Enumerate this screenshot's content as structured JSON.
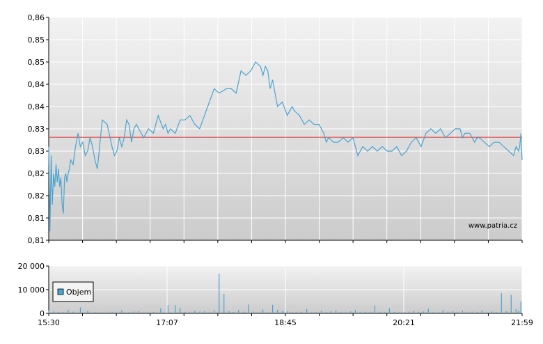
{
  "watermark": "www.patria.cz",
  "colors": {
    "price_line": "#4aa3d1",
    "reference_line": "#e03030",
    "volume_bar": "#4aa3d1",
    "grid": "#ffffff",
    "plot_bg_top": "#f2f2f2",
    "plot_bg_bottom": "#cccccc",
    "axis": "#000000"
  },
  "chart_data": [
    {
      "type": "line",
      "title": "",
      "xlabel": "",
      "ylabel": "",
      "x_tick_labels": [
        "15:30",
        "17:07",
        "18:45",
        "20:21",
        "21:59"
      ],
      "y_tick_labels": [
        "0,81",
        "0,81",
        "0,82",
        "0,82",
        "0,83",
        "0,83",
        "0,84",
        "0,84",
        "0,85",
        "0,85",
        "0,86"
      ],
      "ylim": [
        0.81,
        0.86
      ],
      "xlim_minutes": [
        0,
        389
      ],
      "grid": true,
      "reference_line": {
        "value": 0.8331
      },
      "series": [
        {
          "x": [
            0,
            1,
            2,
            3,
            4,
            5,
            6,
            7,
            8,
            9,
            10,
            11,
            12,
            13,
            14,
            15,
            16,
            17,
            18,
            20,
            22,
            24,
            26,
            28,
            30,
            32,
            34,
            36,
            38,
            40,
            44,
            48,
            52,
            54,
            56,
            58,
            60,
            62,
            64,
            66,
            68,
            70,
            72,
            74,
            78,
            82,
            86,
            90,
            94,
            96,
            98,
            100,
            104,
            108,
            112,
            116,
            120,
            124,
            128,
            132,
            136,
            140,
            146,
            150,
            154,
            158,
            162,
            166,
            170,
            174,
            176,
            178,
            180,
            182,
            184,
            186,
            188,
            192,
            196,
            198,
            200,
            202,
            206,
            210,
            214,
            218,
            222,
            226,
            228,
            230,
            234,
            238,
            242,
            246,
            250,
            254,
            258,
            262,
            266,
            270,
            274,
            278,
            282,
            286,
            290,
            294,
            298,
            302,
            306,
            310,
            314,
            318,
            322,
            326,
            330,
            334,
            338,
            340,
            342,
            346,
            350,
            352,
            354,
            358,
            362,
            366,
            370,
            374,
            378,
            382,
            384,
            386,
            387,
            388,
            389
          ],
          "y": [
            0.831,
            0.812,
            0.829,
            0.818,
            0.825,
            0.822,
            0.827,
            0.823,
            0.826,
            0.822,
            0.824,
            0.818,
            0.816,
            0.824,
            0.825,
            0.823,
            0.825,
            0.826,
            0.828,
            0.827,
            0.831,
            0.834,
            0.831,
            0.832,
            0.829,
            0.83,
            0.833,
            0.831,
            0.828,
            0.826,
            0.837,
            0.836,
            0.831,
            0.829,
            0.83,
            0.833,
            0.831,
            0.833,
            0.837,
            0.836,
            0.832,
            0.835,
            0.836,
            0.835,
            0.833,
            0.835,
            0.834,
            0.838,
            0.835,
            0.836,
            0.834,
            0.835,
            0.834,
            0.837,
            0.837,
            0.838,
            0.836,
            0.835,
            0.838,
            0.841,
            0.844,
            0.843,
            0.844,
            0.844,
            0.843,
            0.848,
            0.847,
            0.848,
            0.85,
            0.849,
            0.847,
            0.849,
            0.848,
            0.844,
            0.846,
            0.843,
            0.84,
            0.841,
            0.838,
            0.839,
            0.84,
            0.839,
            0.838,
            0.836,
            0.837,
            0.836,
            0.836,
            0.834,
            0.832,
            0.833,
            0.832,
            0.832,
            0.833,
            0.832,
            0.833,
            0.829,
            0.831,
            0.83,
            0.831,
            0.83,
            0.831,
            0.83,
            0.83,
            0.831,
            0.829,
            0.83,
            0.832,
            0.833,
            0.831,
            0.834,
            0.835,
            0.834,
            0.835,
            0.833,
            0.834,
            0.835,
            0.835,
            0.833,
            0.834,
            0.834,
            0.832,
            0.833,
            0.833,
            0.832,
            0.831,
            0.832,
            0.832,
            0.831,
            0.83,
            0.829,
            0.831,
            0.83,
            0.831,
            0.834,
            0.828
          ],
          "raw_dense_note_exclusion": true
        }
      ]
    },
    {
      "type": "bar",
      "title": "",
      "xlabel": "",
      "ylabel": "",
      "y_tick_labels": [
        "0",
        "10 000",
        "20 000"
      ],
      "ylim": [
        0,
        20000
      ],
      "legend": {
        "label": "Objem",
        "placement": "bottom-left"
      },
      "series": [
        {
          "name": "Objem",
          "x": [
            0,
            4,
            8,
            12,
            16,
            20,
            26,
            32,
            38,
            44,
            52,
            60,
            66,
            70,
            74,
            80,
            86,
            92,
            98,
            104,
            108,
            112,
            116,
            120,
            124,
            128,
            132,
            136,
            140,
            144,
            148,
            152,
            156,
            160,
            164,
            168,
            172,
            176,
            180,
            184,
            188,
            192,
            196,
            200,
            204,
            208,
            212,
            216,
            220,
            224,
            228,
            232,
            236,
            240,
            244,
            248,
            252,
            256,
            260,
            264,
            268,
            272,
            276,
            280,
            284,
            288,
            292,
            296,
            300,
            304,
            308,
            312,
            316,
            320,
            324,
            328,
            332,
            336,
            340,
            344,
            348,
            352,
            356,
            360,
            364,
            368,
            372,
            376,
            380,
            384,
            386,
            388
          ],
          "values": [
            1200,
            800,
            600,
            500,
            1500,
            700,
            2500,
            900,
            600,
            500,
            700,
            1200,
            600,
            800,
            900,
            500,
            600,
            2200,
            3500,
            3500,
            2400,
            600,
            500,
            1100,
            700,
            900,
            600,
            1300,
            16800,
            8200,
            900,
            600,
            1400,
            700,
            3700,
            700,
            500,
            1600,
            500,
            3600,
            1500,
            1000,
            900,
            500,
            600,
            700,
            1800,
            500,
            500,
            1100,
            600,
            900,
            1300,
            600,
            500,
            800,
            1400,
            500,
            700,
            600,
            3300,
            700,
            600,
            2200,
            600,
            500,
            500,
            700,
            1100,
            600,
            800,
            1900,
            600,
            500,
            1300,
            700,
            900,
            600,
            1100,
            500,
            700,
            600,
            1400,
            500,
            800,
            600,
            8500,
            900,
            7800,
            1700,
            1100,
            5000
          ]
        }
      ]
    }
  ]
}
